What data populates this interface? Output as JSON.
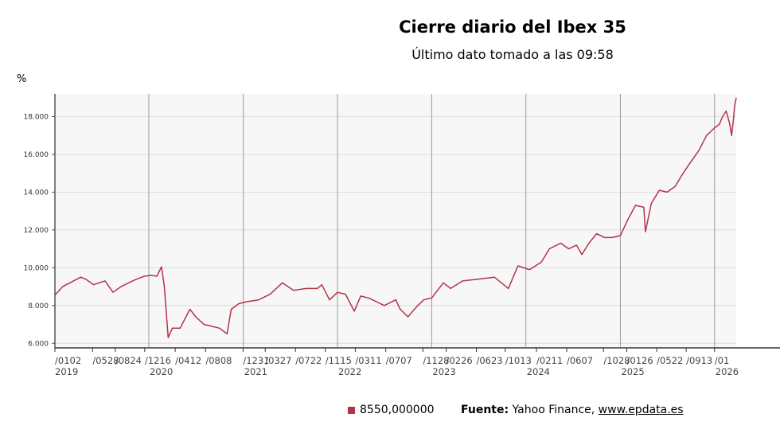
{
  "chart_data": {
    "type": "line",
    "title": "Cierre diario del Ibex 35",
    "subtitle": "Último dato tomado a las 09:58",
    "ylabel": "%",
    "ylim": [
      5800,
      19200
    ],
    "y_ticks": [
      "6.000",
      "8.000",
      "10.000",
      "12.000",
      "14.000",
      "16.000",
      "18.000"
    ],
    "y_tick_values": [
      6000,
      8000,
      10000,
      12000,
      14000,
      16000,
      18000
    ],
    "x_range": [
      "2019-01-02",
      "2026-03-26"
    ],
    "x_tick_labels": [
      "/0102",
      "/0528",
      "/0824",
      "/1216",
      "/0412",
      "/0808",
      "/1231",
      "/0327",
      "/0722",
      "/1115",
      "/0311",
      "/0707",
      "/1128",
      "/0226",
      "/0623",
      "/1013",
      "/0211",
      "/0607",
      "/1028",
      "/0126",
      "/0522",
      "/0913",
      "/01"
    ],
    "x_tick_dates": [
      "2019-01-02",
      "2019-05-28",
      "2019-08-24",
      "2019-12-16",
      "2020-04-12",
      "2020-08-08",
      "2020-12-31",
      "2021-03-27",
      "2021-07-22",
      "2021-11-15",
      "2022-03-11",
      "2022-07-07",
      "2022-11-28",
      "2023-02-26",
      "2023-06-23",
      "2023-10-13",
      "2024-02-11",
      "2024-06-07",
      "2024-10-28",
      "2025-01-26",
      "2025-05-22",
      "2025-09-13",
      "2026-01-01"
    ],
    "year_labels": [
      "2019",
      "2020",
      "2021",
      "2022",
      "2023",
      "2024",
      "2025",
      "2026"
    ],
    "year_dates": [
      "2019-01-01",
      "2020-01-01",
      "2021-01-01",
      "2022-01-01",
      "2023-01-01",
      "2024-01-01",
      "2025-01-01",
      "2026-01-01"
    ],
    "grid": true,
    "legend_position": "bottom",
    "line_color": "#b5334a",
    "series": [
      {
        "name": "8550,000000",
        "points": [
          [
            "2019-01-02",
            8550
          ],
          [
            "2019-02-01",
            9000
          ],
          [
            "2019-03-01",
            9200
          ],
          [
            "2019-04-12",
            9500
          ],
          [
            "2019-05-01",
            9400
          ],
          [
            "2019-06-01",
            9100
          ],
          [
            "2019-07-15",
            9300
          ],
          [
            "2019-08-15",
            8700
          ],
          [
            "2019-09-15",
            9000
          ],
          [
            "2019-10-15",
            9200
          ],
          [
            "2019-11-15",
            9400
          ],
          [
            "2019-12-15",
            9550
          ],
          [
            "2020-01-10",
            9600
          ],
          [
            "2020-02-01",
            9550
          ],
          [
            "2020-02-19",
            10050
          ],
          [
            "2020-03-01",
            9000
          ],
          [
            "2020-03-16",
            6300
          ],
          [
            "2020-04-01",
            6800
          ],
          [
            "2020-05-01",
            6800
          ],
          [
            "2020-06-08",
            7800
          ],
          [
            "2020-07-01",
            7400
          ],
          [
            "2020-08-01",
            7000
          ],
          [
            "2020-09-01",
            6900
          ],
          [
            "2020-10-01",
            6800
          ],
          [
            "2020-10-30",
            6500
          ],
          [
            "2020-11-15",
            7800
          ],
          [
            "2020-12-15",
            8100
          ],
          [
            "2021-01-15",
            8200
          ],
          [
            "2021-03-01",
            8300
          ],
          [
            "2021-04-15",
            8600
          ],
          [
            "2021-06-01",
            9200
          ],
          [
            "2021-07-15",
            8800
          ],
          [
            "2021-09-01",
            8900
          ],
          [
            "2021-10-15",
            8900
          ],
          [
            "2021-11-01",
            9100
          ],
          [
            "2021-12-01",
            8300
          ],
          [
            "2022-01-01",
            8700
          ],
          [
            "2022-02-01",
            8600
          ],
          [
            "2022-03-07",
            7700
          ],
          [
            "2022-04-01",
            8500
          ],
          [
            "2022-05-01",
            8400
          ],
          [
            "2022-06-01",
            8200
          ],
          [
            "2022-07-01",
            8000
          ],
          [
            "2022-08-15",
            8300
          ],
          [
            "2022-09-01",
            7800
          ],
          [
            "2022-10-01",
            7400
          ],
          [
            "2022-11-01",
            7900
          ],
          [
            "2022-12-01",
            8300
          ],
          [
            "2023-01-01",
            8400
          ],
          [
            "2023-02-15",
            9200
          ],
          [
            "2023-03-15",
            8900
          ],
          [
            "2023-05-01",
            9300
          ],
          [
            "2023-07-01",
            9400
          ],
          [
            "2023-09-01",
            9500
          ],
          [
            "2023-10-25",
            8900
          ],
          [
            "2023-12-01",
            10100
          ],
          [
            "2024-01-15",
            9900
          ],
          [
            "2024-03-01",
            10300
          ],
          [
            "2024-04-01",
            11000
          ],
          [
            "2024-05-15",
            11300
          ],
          [
            "2024-06-15",
            11000
          ],
          [
            "2024-07-15",
            11200
          ],
          [
            "2024-08-05",
            10700
          ],
          [
            "2024-09-01",
            11300
          ],
          [
            "2024-10-01",
            11800
          ],
          [
            "2024-11-01",
            11600
          ],
          [
            "2024-12-01",
            11600
          ],
          [
            "2025-01-01",
            11700
          ],
          [
            "2025-02-01",
            12600
          ],
          [
            "2025-03-01",
            13300
          ],
          [
            "2025-04-02",
            13200
          ],
          [
            "2025-04-08",
            11900
          ],
          [
            "2025-05-01",
            13400
          ],
          [
            "2025-06-01",
            14100
          ],
          [
            "2025-07-01",
            14000
          ],
          [
            "2025-08-01",
            14300
          ],
          [
            "2025-09-01",
            15000
          ],
          [
            "2025-10-01",
            15600
          ],
          [
            "2025-11-01",
            16200
          ],
          [
            "2025-12-01",
            17000
          ],
          [
            "2026-01-01",
            17400
          ],
          [
            "2026-01-20",
            17600
          ],
          [
            "2026-02-01",
            18000
          ],
          [
            "2026-02-15",
            18300
          ],
          [
            "2026-03-01",
            17600
          ],
          [
            "2026-03-08",
            17000
          ],
          [
            "2026-03-15",
            17800
          ],
          [
            "2026-03-20",
            18600
          ],
          [
            "2026-03-26",
            19000
          ]
        ]
      }
    ]
  },
  "legend": {
    "label": "8550,000000"
  },
  "source": {
    "prefix": "Fuente:",
    "text": "Yahoo Finance,",
    "link": "www.epdata.es"
  }
}
